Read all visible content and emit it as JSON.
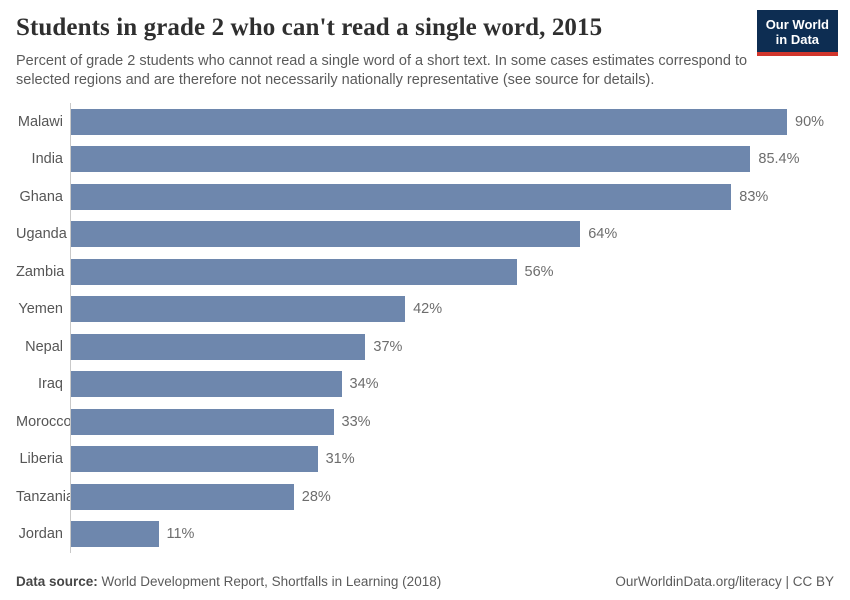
{
  "header": {
    "title": "Students in grade 2 who can't read a single word, 2015",
    "subtitle": "Percent of grade 2 students who cannot read a single word of a short text. In some cases estimates correspond to selected regions and are therefore not necessarily nationally representative (see source for details).",
    "logo": {
      "line1": "Our World",
      "line2": "in Data"
    }
  },
  "chart_data": {
    "type": "bar",
    "orientation": "horizontal",
    "title": "Students in grade 2 who can't read a single word, 2015",
    "categories": [
      "Malawi",
      "India",
      "Ghana",
      "Uganda",
      "Zambia",
      "Yemen",
      "Nepal",
      "Iraq",
      "Morocco",
      "Liberia",
      "Tanzania",
      "Jordan"
    ],
    "values": [
      90,
      85.4,
      83,
      64,
      56,
      42,
      37,
      34,
      33,
      31,
      28,
      11
    ],
    "value_labels": [
      "90%",
      "85.4%",
      "83%",
      "64%",
      "56%",
      "42%",
      "37%",
      "34%",
      "33%",
      "31%",
      "28%",
      "11%"
    ],
    "unit": "%",
    "xlim": [
      0,
      90
    ],
    "grid": false,
    "legend": "none",
    "bar_color": "#6e87ad"
  },
  "footer": {
    "source_label": "Data source:",
    "source_text": " World Development Report, Shortfalls in Learning (2018)",
    "credit": "OurWorldinData.org/literacy | CC BY"
  },
  "colors": {
    "bar": "#6e87ad",
    "logo_background": "#0d2d52",
    "logo_accent": "#d1352c",
    "axis_line": "#c9c9c9",
    "title_text": "#2f2f2f",
    "subtitle_text": "#5b5b5b"
  }
}
